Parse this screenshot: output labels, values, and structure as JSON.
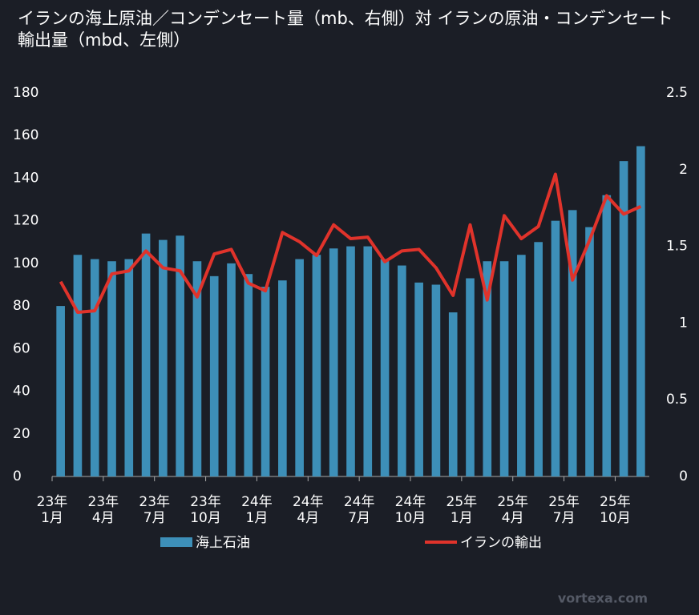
{
  "chart_data": {
    "type": "bar_line",
    "title": "イランの海上原油／コンデンセート量（mb、右側）対 イランの原油・コンデンセート輸出量（mbd、左側）",
    "categories": [
      "23年\n1月",
      null,
      null,
      "23年\n4月",
      null,
      null,
      "23年\n7月",
      null,
      null,
      "23年\n10月",
      null,
      null,
      "24年\n1月",
      null,
      null,
      "24年\n4月",
      null,
      null,
      "24年\n7月",
      null,
      null,
      "24年\n10月",
      null,
      null,
      "25年\n1月",
      null,
      null,
      "25年\n4月",
      null,
      null,
      "25年\n7月",
      null,
      null,
      "25年\n10月",
      null
    ],
    "series": [
      {
        "name": "海上石油",
        "color": "#3d8fb8",
        "type": "bar",
        "values": [
          80,
          104,
          102,
          101,
          102,
          114,
          111,
          113,
          101,
          94,
          100,
          95,
          89,
          92,
          102,
          104,
          107,
          108,
          108,
          102,
          99,
          91,
          90,
          77,
          93,
          101,
          101,
          104,
          110,
          120,
          125,
          117,
          132,
          148,
          155
        ]
      },
      {
        "name": "イランの輸出",
        "color": "#e0332b",
        "type": "line",
        "axis": "y2",
        "values": [
          1.27,
          1.07,
          1.08,
          1.32,
          1.34,
          1.47,
          1.36,
          1.34,
          1.17,
          1.45,
          1.48,
          1.26,
          1.21,
          1.59,
          1.53,
          1.44,
          1.64,
          1.55,
          1.56,
          1.4,
          1.47,
          1.48,
          1.36,
          1.18,
          1.64,
          1.15,
          1.7,
          1.55,
          1.63,
          1.97,
          1.28,
          1.54,
          1.83,
          1.71,
          1.76
        ]
      }
    ],
    "ylim": [
      0,
      180
    ],
    "yticks": [
      0,
      20,
      40,
      60,
      80,
      100,
      120,
      140,
      160,
      180
    ],
    "y2lim": [
      0,
      2.5
    ],
    "y2ticks": [
      0,
      0.5,
      1,
      1.5,
      2,
      2.5
    ],
    "watermark": "vortexa.com"
  }
}
